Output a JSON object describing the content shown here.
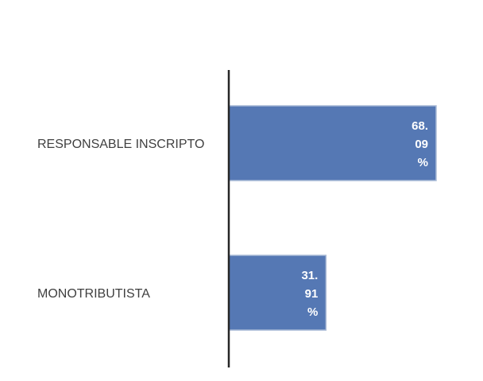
{
  "chart_data": {
    "type": "bar",
    "orientation": "horizontal",
    "categories": [
      "RESPONSABLE INSCRIPTO",
      "MONOTRIBUTISTA"
    ],
    "values": [
      68.09,
      31.91
    ],
    "value_labels": [
      [
        "68.",
        "09",
        "%"
      ],
      [
        "31.",
        "91",
        "%"
      ]
    ],
    "unit": "%",
    "xlim": [
      0,
      68.09
    ],
    "grid": false,
    "legend": "none",
    "colors": {
      "bar": "#5578b4",
      "bar_border": "#a9bad6",
      "axis": "#262626",
      "category_text": "#404040",
      "value_text": "#ffffff"
    }
  }
}
